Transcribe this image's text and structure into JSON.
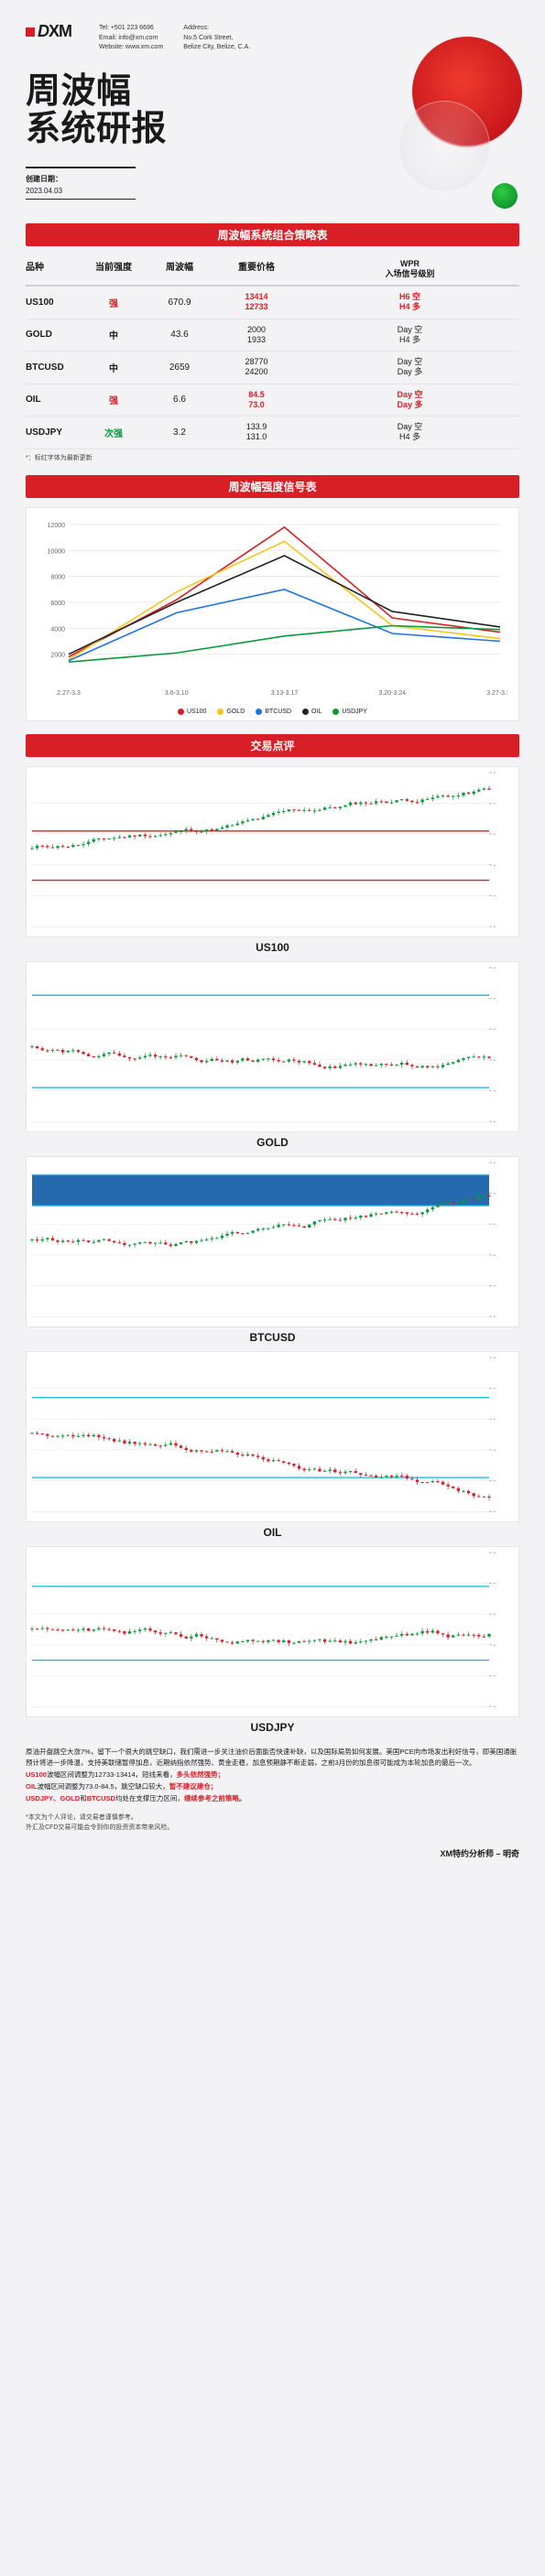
{
  "header": {
    "logo_text": "XM",
    "contact": {
      "tel_label": "Tel: +501 223 6696",
      "email_label": "Email: info@xm.com",
      "web_label": "Website: www.xm.com",
      "addr_label": "Address:",
      "addr_l1": "No.5 Cork Street,",
      "addr_l2": "Belize City, Belize, C.A."
    },
    "title_l1": "周波幅",
    "title_l2": "系统研报",
    "date_label": "创建日期：",
    "date_value": "2023.04.03"
  },
  "sections": {
    "strategy": "周波幅系统组合策略表",
    "signal": "周波幅强度信号表",
    "review": "交易点评"
  },
  "table": {
    "headers": {
      "c1": "品种",
      "c2": "当前强度",
      "c3": "周波幅",
      "c4": "重要价格",
      "c5_l1": "WPR",
      "c5_l2": "入场信号级别"
    },
    "rows": [
      {
        "sym": "US100",
        "strength": "强",
        "strength_class": "red",
        "wpr": "670.9",
        "p1": "13414",
        "p2": "12733",
        "p_class": "red",
        "s1": "H6 空",
        "s2": "H4 多",
        "s_class": "red"
      },
      {
        "sym": "GOLD",
        "strength": "中",
        "strength_class": "",
        "wpr": "43.6",
        "p1": "2000",
        "p2": "1933",
        "p_class": "",
        "s1": "Day 空",
        "s2": "H4 多",
        "s_class": ""
      },
      {
        "sym": "BTCUSD",
        "strength": "中",
        "strength_class": "",
        "wpr": "2659",
        "p1": "28770",
        "p2": "24200",
        "p_class": "",
        "s1": "Day 空",
        "s2": "Day 多",
        "s_class": ""
      },
      {
        "sym": "OIL",
        "strength": "强",
        "strength_class": "red",
        "wpr": "6.6",
        "p1": "84.5",
        "p2": "73.0",
        "p_class": "red",
        "s1": "Day 空",
        "s2": "Day 多",
        "s_class": "red"
      },
      {
        "sym": "USDJPY",
        "strength": "次强",
        "strength_class": "green",
        "wpr": "3.2",
        "p1": "133.9",
        "p2": "131.0",
        "p_class": "",
        "s1": "Day 空",
        "s2": "H4 多",
        "s_class": ""
      }
    ],
    "note": "*：标红字体为最新更新"
  },
  "lineChart": {
    "x_labels": [
      "2.27-3.3",
      "3.6-3.10",
      "3.13-3.17",
      "3.20-3.24",
      "3.27-3.31"
    ],
    "y_ticks": [
      2000,
      4000,
      6000,
      8000,
      10000,
      12000
    ],
    "y_max": 12000,
    "series": [
      {
        "name": "US100",
        "color": "#d91f26",
        "data": [
          1800,
          6200,
          11800,
          4800,
          3700
        ]
      },
      {
        "name": "GOLD",
        "color": "#f5c518",
        "data": [
          1600,
          6800,
          10700,
          4200,
          3200
        ]
      },
      {
        "name": "BTCUSD",
        "color": "#1e73e8",
        "data": [
          1500,
          5200,
          7000,
          3600,
          3000
        ]
      },
      {
        "name": "OIL",
        "color": "#222222",
        "data": [
          2000,
          6000,
          9600,
          5300,
          4100
        ]
      },
      {
        "name": "USDJPY",
        "color": "#0a9a3a",
        "data": [
          1400,
          2100,
          3400,
          4200,
          3900
        ]
      }
    ]
  },
  "candleCharts": [
    {
      "id": "US100",
      "hlines": [
        0.38,
        0.7
      ],
      "hcolor": "#d91f26",
      "trend": "up",
      "seed": 11
    },
    {
      "id": "GOLD",
      "hlines": [
        0.18,
        0.78
      ],
      "hcolor": "#1ebbe8",
      "trend": "range",
      "seed": 22
    },
    {
      "id": "BTCUSD",
      "hlines": [
        0.08,
        0.28
      ],
      "hcolor": "#1ebbe8",
      "trend": "up2",
      "seed": 33,
      "band": [
        0.08,
        0.28
      ],
      "band_color": "#0050a0"
    },
    {
      "id": "OIL",
      "hlines": [
        0.26,
        0.78
      ],
      "hcolor": "#1ebbe8",
      "trend": "down",
      "seed": 44
    },
    {
      "id": "USDJPY",
      "hlines": [
        0.22,
        0.7
      ],
      "hcolor": "#1ebbe8",
      "trend": "rangev",
      "seed": 55
    }
  ],
  "footer": {
    "p1a": "原油开盘跳空大涨7%，留下一个很大的跳空缺口，我们需进一步关注油价后面能否快速补缺，以及国际局势如何发展。美国PCE向市场发出利好信号，即美国通胀预计将进一步降温，支持美联储暂停加息，近期纳指依然强势、黄金走稳，",
    "p1b": "加息预期静不断走弱，之前3月份的加息很可能成为本轮加息的最后一次。",
    "p2a": "US100",
    "p2b": "波幅区间调整为12733-13414，短线来看，",
    "p2c": "多头依然强势；",
    "p3a": "OIL",
    "p3b": "波幅区间调整为73.0-84.5，跳空缺口较大，",
    "p3c": "暂不建议建仓；",
    "p4a": "USDJPY、GOLD",
    "p4b": "和",
    "p4c": "BTCUSD",
    "p4d": "均处在支撑压力区间，",
    "p4e": "继续参考之前策略。",
    "disc1": "*本文为个人评论，请交易者谨慎参考。",
    "disc2": " 外汇及CFD交易可能会令到你的投资资本带来风险。",
    "sign": "XM特约分析师 – 明奇"
  }
}
